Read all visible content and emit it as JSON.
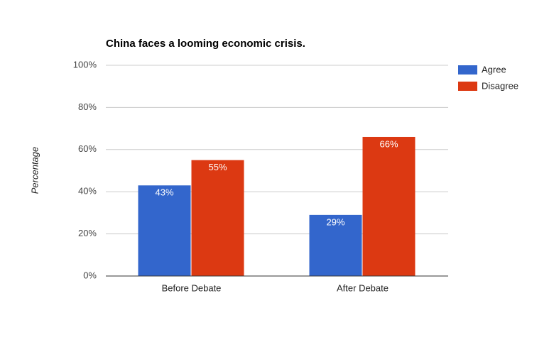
{
  "chart_data": {
    "type": "bar",
    "title": "China faces a looming economic crisis.",
    "y_label": "Percentage",
    "categories": [
      "Before Debate",
      "After Debate"
    ],
    "series": [
      {
        "name": "Agree",
        "color": "#3366cc",
        "values": [
          43,
          29
        ],
        "value_labels": [
          "43%",
          "29%"
        ]
      },
      {
        "name": "Disagree",
        "color": "#dc3912",
        "values": [
          55,
          66
        ],
        "value_labels": [
          "55%",
          "66%"
        ]
      }
    ],
    "ylim": [
      0,
      100
    ],
    "yticks": [
      {
        "value": 0,
        "label": "0%"
      },
      {
        "value": 20,
        "label": "20%"
      },
      {
        "value": 40,
        "label": "40%"
      },
      {
        "value": 60,
        "label": "60%"
      },
      {
        "value": 80,
        "label": "80%"
      },
      {
        "value": 100,
        "label": "100%"
      }
    ],
    "grid": true,
    "legend": "right"
  }
}
